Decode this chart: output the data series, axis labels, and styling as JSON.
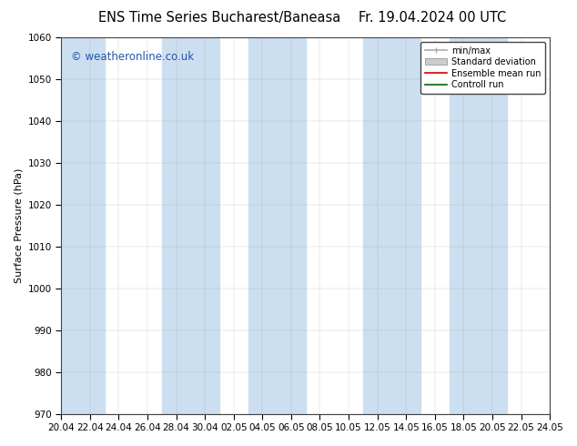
{
  "title_left": "ENS Time Series Bucharest/Baneasa",
  "title_right": "Fr. 19.04.2024 00 UTC",
  "ylabel": "Surface Pressure (hPa)",
  "ylim": [
    970,
    1060
  ],
  "yticks": [
    970,
    980,
    990,
    1000,
    1010,
    1020,
    1030,
    1040,
    1050,
    1060
  ],
  "xtick_labels": [
    "20.04",
    "22.04",
    "24.04",
    "26.04",
    "28.04",
    "30.04",
    "02.05",
    "04.05",
    "06.05",
    "08.05",
    "10.05",
    "12.05",
    "14.05",
    "16.05",
    "18.05",
    "20.05",
    "22.05",
    "24.05"
  ],
  "background_color": "#ffffff",
  "plot_bg_color": "#ffffff",
  "band_color": "#ccdff0",
  "watermark": "© weatheronline.co.uk",
  "watermark_color": "#2255aa",
  "legend_entries": [
    "min/max",
    "Standard deviation",
    "Ensemble mean run",
    "Controll run"
  ],
  "legend_colors": [
    "#aaaaaa",
    "#cccccc",
    "#cc0000",
    "#006600"
  ],
  "title_fontsize": 10.5,
  "tick_fontsize": 7.5,
  "ylabel_fontsize": 8,
  "watermark_fontsize": 8.5,
  "band_indices": [
    0,
    1,
    4,
    5,
    7,
    8,
    11,
    12,
    14,
    15
  ],
  "n_xticks": 18
}
